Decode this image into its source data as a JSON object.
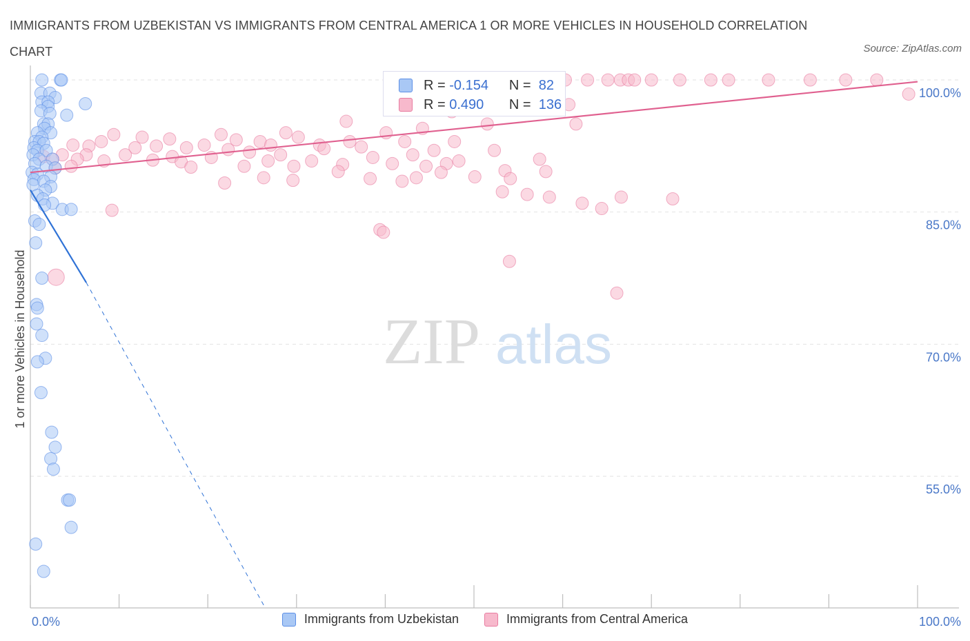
{
  "title": "IMMIGRANTS FROM UZBEKISTAN VS IMMIGRANTS FROM CENTRAL AMERICA 1 OR MORE VEHICLES IN HOUSEHOLD CORRELATION CHART",
  "source": "Source: ZipAtlas.com",
  "watermark": {
    "zip": "ZIP",
    "atlas": "atlas"
  },
  "stats": [
    {
      "r_label": "R =",
      "r_value": "-0.154",
      "n_label": "N =",
      "n_value": "82",
      "color": "#a9c8f5"
    },
    {
      "r_label": "R =",
      "r_value": "0.490",
      "n_label": "N =",
      "n_value": "136",
      "color": "#f7b9cc"
    }
  ],
  "legend": [
    {
      "label": "Immigrants from Uzbekistan",
      "color": "#a9c8f5"
    },
    {
      "label": "Immigrants from Central America",
      "color": "#f7b9cc"
    }
  ],
  "chart_data": {
    "type": "scatter",
    "ylabel": "1 or more Vehicles in Household",
    "xlabel": "",
    "xlim": [
      0,
      100
    ],
    "ylim": [
      40,
      101
    ],
    "x_tick_labels": [
      "0.0%",
      "100.0%"
    ],
    "y_ticks": [
      55,
      70,
      85,
      100
    ],
    "y_tick_labels": [
      "55.0%",
      "70.0%",
      "85.0%",
      "100.0%"
    ],
    "grid": true,
    "legend_position": "bottom",
    "series": [
      {
        "name": "Immigrants from Uzbekistan",
        "color": "#5b8ee6",
        "fill": "#a9c8f5",
        "trend": {
          "x0": 0,
          "y0": 87.5,
          "x1": 6.3,
          "y1": 77.0,
          "dash_to_x": 26.5,
          "dash_to_y": 40,
          "color": "#2f72d6"
        },
        "points": [
          [
            1.3,
            100
          ],
          [
            3.4,
            100
          ],
          [
            3.5,
            100
          ],
          [
            1.2,
            98.5
          ],
          [
            2.2,
            98.5
          ],
          [
            2.8,
            98
          ],
          [
            1.3,
            97.5
          ],
          [
            2.0,
            97.5
          ],
          [
            6.2,
            97.3
          ],
          [
            2.0,
            97
          ],
          [
            1.2,
            96.5
          ],
          [
            2.2,
            96.2
          ],
          [
            4.1,
            96
          ],
          [
            1.5,
            95
          ],
          [
            2.0,
            95
          ],
          [
            1.6,
            94.5
          ],
          [
            0.8,
            94
          ],
          [
            2.3,
            94
          ],
          [
            1.3,
            93.5
          ],
          [
            0.5,
            93
          ],
          [
            1.0,
            93
          ],
          [
            1.5,
            92.8
          ],
          [
            0.4,
            92.3
          ],
          [
            0.8,
            92
          ],
          [
            1.8,
            92
          ],
          [
            0.3,
            91.5
          ],
          [
            1.0,
            91
          ],
          [
            2.5,
            91
          ],
          [
            0.5,
            90.5
          ],
          [
            1.8,
            90.2
          ],
          [
            2.8,
            90
          ],
          [
            0.2,
            89.5
          ],
          [
            0.8,
            89.3
          ],
          [
            2.3,
            89
          ],
          [
            0.4,
            88.7
          ],
          [
            1.5,
            88.5
          ],
          [
            0.3,
            88.1
          ],
          [
            2.3,
            87.9
          ],
          [
            1.7,
            87.5
          ],
          [
            0.8,
            86.9
          ],
          [
            1.4,
            86.5
          ],
          [
            2.5,
            86
          ],
          [
            1.6,
            85.8
          ],
          [
            3.6,
            85.3
          ],
          [
            4.6,
            85.3
          ],
          [
            0.5,
            84
          ],
          [
            1.0,
            83.6
          ],
          [
            0.6,
            81.5
          ],
          [
            1.3,
            77.5
          ],
          [
            0.7,
            74.5
          ],
          [
            0.8,
            74.1
          ],
          [
            0.7,
            72.3
          ],
          [
            1.3,
            71
          ],
          [
            1.7,
            68.4
          ],
          [
            0.8,
            68
          ],
          [
            1.2,
            64.5
          ],
          [
            2.4,
            60
          ],
          [
            2.8,
            58.3
          ],
          [
            2.3,
            57
          ],
          [
            2.6,
            55.8
          ],
          [
            4.2,
            52.3
          ],
          [
            4.4,
            52.3
          ],
          [
            4.6,
            49.2
          ],
          [
            0.6,
            47.3
          ],
          [
            1.5,
            44.2
          ]
        ]
      },
      {
        "name": "Immigrants from Central America",
        "color": "#e87ba0",
        "fill": "#f7b9cc",
        "trend": {
          "x0": 0,
          "y0": 89.5,
          "x1": 100,
          "y1": 99.8,
          "color": "#e0608f"
        },
        "points": [
          [
            47.5,
            100
          ],
          [
            52,
            100
          ],
          [
            53.2,
            100
          ],
          [
            55,
            100
          ],
          [
            58,
            100
          ],
          [
            60.3,
            100
          ],
          [
            62.8,
            100
          ],
          [
            65.1,
            100
          ],
          [
            66.5,
            100
          ],
          [
            67.4,
            100
          ],
          [
            70,
            100
          ],
          [
            73.2,
            100
          ],
          [
            78.7,
            100
          ],
          [
            83.2,
            100
          ],
          [
            87.9,
            100
          ],
          [
            91.9,
            100
          ],
          [
            95.4,
            100
          ],
          [
            68.1,
            100
          ],
          [
            76.7,
            100
          ],
          [
            99.0,
            98.4
          ],
          [
            60.7,
            97.2
          ],
          [
            51.5,
            98
          ],
          [
            47.5,
            96.4
          ],
          [
            35.6,
            95.3
          ],
          [
            51.5,
            95
          ],
          [
            61.5,
            95
          ],
          [
            44.2,
            94.5
          ],
          [
            28.8,
            94
          ],
          [
            40.1,
            94
          ],
          [
            9.4,
            93.8
          ],
          [
            21.5,
            93.8
          ],
          [
            12.6,
            93.5
          ],
          [
            30.2,
            93.5
          ],
          [
            23.2,
            93.2
          ],
          [
            47.8,
            93
          ],
          [
            15.7,
            93.3
          ],
          [
            25.9,
            93
          ],
          [
            36,
            93
          ],
          [
            42.2,
            93
          ],
          [
            6.6,
            92.5
          ],
          [
            8.0,
            93
          ],
          [
            4.8,
            92.6
          ],
          [
            19.6,
            92.6
          ],
          [
            27.1,
            92.6
          ],
          [
            32.6,
            92.6
          ],
          [
            37.3,
            92.4
          ],
          [
            14.2,
            92.5
          ],
          [
            11.8,
            92.3
          ],
          [
            17.6,
            92.3
          ],
          [
            33.1,
            92.2
          ],
          [
            22.3,
            92.1
          ],
          [
            45.5,
            92
          ],
          [
            24.7,
            91.8
          ],
          [
            52.3,
            92
          ],
          [
            28.2,
            91.5
          ],
          [
            43.1,
            91.5
          ],
          [
            3.6,
            91.5
          ],
          [
            6.3,
            91.5
          ],
          [
            10.7,
            91.5
          ],
          [
            16.0,
            91.3
          ],
          [
            20.4,
            91.2
          ],
          [
            38.6,
            91.2
          ],
          [
            1.5,
            91.3
          ],
          [
            2.5,
            91
          ],
          [
            5.3,
            91
          ],
          [
            8.3,
            90.8
          ],
          [
            13.8,
            90.9
          ],
          [
            17.0,
            90.7
          ],
          [
            26.8,
            90.8
          ],
          [
            31.7,
            90.8
          ],
          [
            48.3,
            90.8
          ],
          [
            57.4,
            91
          ],
          [
            46.9,
            90.5
          ],
          [
            40.8,
            90.5
          ],
          [
            35.2,
            90.4
          ],
          [
            29.7,
            90.2
          ],
          [
            24.1,
            90.2
          ],
          [
            18.1,
            90.1
          ],
          [
            44.6,
            90.2
          ],
          [
            2.8,
            90
          ],
          [
            4.6,
            90.2
          ],
          [
            53.5,
            89.7
          ],
          [
            58.1,
            89.6
          ],
          [
            34.7,
            89.6
          ],
          [
            46.3,
            89.5
          ],
          [
            50.1,
            89
          ],
          [
            54.1,
            88.8
          ],
          [
            53.2,
            87.3
          ],
          [
            56,
            87
          ],
          [
            58.5,
            86.7
          ],
          [
            62.2,
            86
          ],
          [
            64.4,
            85.4
          ],
          [
            66.6,
            86.7
          ],
          [
            72.4,
            86.5
          ],
          [
            26.3,
            88.9
          ],
          [
            21.9,
            88.3
          ],
          [
            29.6,
            88.6
          ],
          [
            43.5,
            88.9
          ],
          [
            38.3,
            88.8
          ],
          [
            41.9,
            88.5
          ],
          [
            9.2,
            85.2
          ],
          [
            39.4,
            83
          ],
          [
            39.8,
            82.7
          ],
          [
            54.0,
            79.4
          ],
          [
            66.1,
            75.8
          ],
          [
            2.9,
            77.6
          ]
        ]
      }
    ]
  }
}
